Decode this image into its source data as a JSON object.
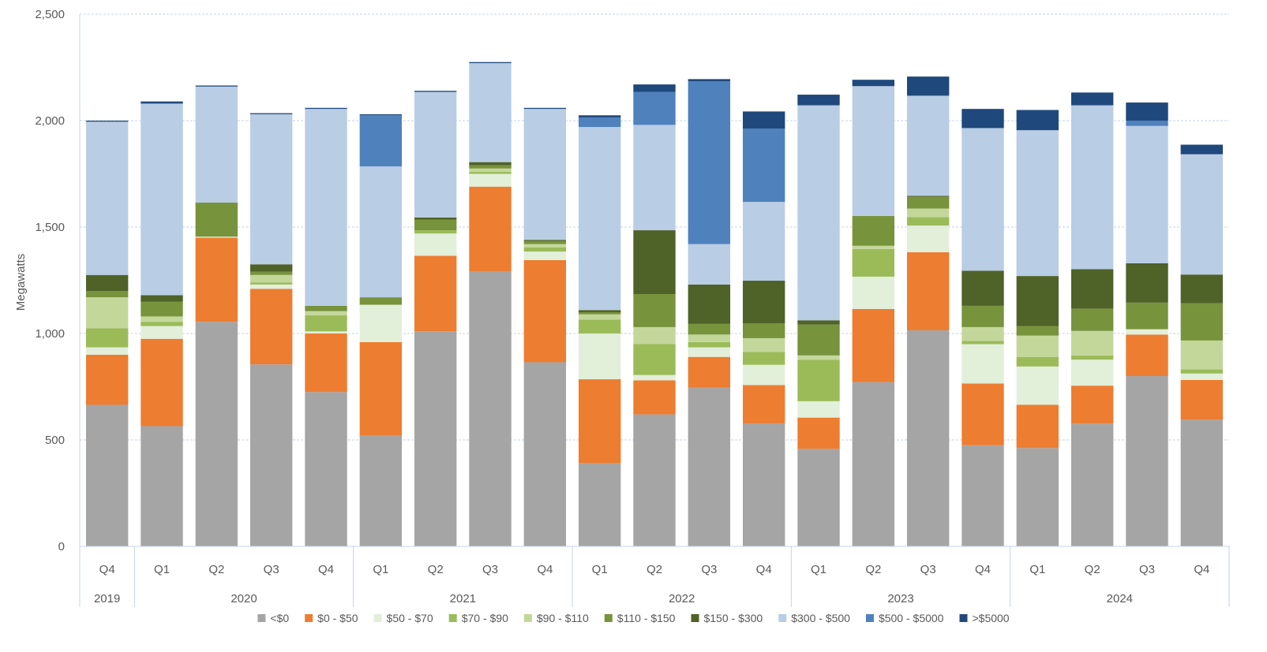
{
  "chart_data": {
    "type": "bar",
    "stacked": true,
    "title": "",
    "xlabel": "",
    "ylabel": "Megawatts",
    "ylim": [
      0,
      2500
    ],
    "yticks": [
      0,
      500,
      1000,
      1500,
      2000,
      2500
    ],
    "ytick_labels": [
      "0",
      "500",
      "1,000",
      "1,500",
      "2,000",
      "2,500"
    ],
    "grid": "horizontal-dashed",
    "legend_position": "bottom",
    "categories": [
      "Q4",
      "Q1",
      "Q2",
      "Q3",
      "Q4",
      "Q1",
      "Q2",
      "Q3",
      "Q4",
      "Q1",
      "Q2",
      "Q3",
      "Q4",
      "Q1",
      "Q2",
      "Q3",
      "Q4",
      "Q1",
      "Q2",
      "Q3",
      "Q4"
    ],
    "year_groups": [
      {
        "label": "2019",
        "count": 1
      },
      {
        "label": "2020",
        "count": 4
      },
      {
        "label": "2021",
        "count": 4
      },
      {
        "label": "2022",
        "count": 4
      },
      {
        "label": "2023",
        "count": 4
      },
      {
        "label": "2024",
        "count": 4
      }
    ],
    "series": [
      {
        "name": "<$0",
        "color": "#a5a5a5",
        "values": [
          665,
          565,
          1055,
          855,
          725,
          520,
          1010,
          1290,
          865,
          390,
          620,
          745,
          578,
          458,
          772,
          1015,
          475,
          462,
          577,
          800,
          595
        ]
      },
      {
        "name": "$0 - $50",
        "color": "#ed7d31",
        "values": [
          235,
          410,
          395,
          355,
          275,
          440,
          355,
          400,
          480,
          395,
          160,
          145,
          180,
          147,
          343,
          367,
          290,
          203,
          178,
          195,
          187
        ]
      },
      {
        "name": "$50 - $70",
        "color": "#e2efd9",
        "values": [
          35,
          60,
          5,
          20,
          10,
          175,
          105,
          60,
          40,
          215,
          25,
          45,
          95,
          77,
          152,
          125,
          185,
          180,
          122,
          25,
          30
        ]
      },
      {
        "name": "$70 - $90",
        "color": "#9bbb59",
        "values": [
          90,
          20,
          0,
          10,
          75,
          0,
          15,
          10,
          20,
          65,
          145,
          25,
          60,
          195,
          130,
          40,
          15,
          45,
          20,
          0,
          20
        ]
      },
      {
        "name": "$90 - $110",
        "color": "#c4d79b",
        "values": [
          145,
          25,
          0,
          35,
          20,
          0,
          0,
          15,
          15,
          25,
          80,
          35,
          65,
          20,
          15,
          40,
          65,
          100,
          115,
          0,
          135
        ]
      },
      {
        "name": "$110 - $150",
        "color": "#77933c",
        "values": [
          30,
          70,
          160,
          15,
          25,
          35,
          50,
          15,
          15,
          10,
          155,
          50,
          70,
          145,
          140,
          55,
          100,
          45,
          105,
          125,
          175
        ]
      },
      {
        "name": "$150 - $300",
        "color": "#4f6228",
        "values": [
          75,
          30,
          0,
          35,
          0,
          0,
          10,
          15,
          5,
          10,
          300,
          185,
          200,
          20,
          0,
          5,
          165,
          235,
          185,
          185,
          135
        ]
      },
      {
        "name": "$300 - $500",
        "color": "#b9cde5",
        "values": [
          720,
          900,
          545,
          705,
          925,
          615,
          590,
          465,
          615,
          860,
          495,
          190,
          370,
          1010,
          610,
          470,
          670,
          685,
          770,
          645,
          565
        ]
      },
      {
        "name": "$500 - $5000",
        "color": "#4f81bd",
        "values": [
          0,
          0,
          0,
          0,
          0,
          240,
          0,
          0,
          0,
          45,
          155,
          765,
          345,
          0,
          0,
          0,
          0,
          0,
          0,
          25,
          0
        ]
      },
      {
        "name": ">$5000",
        "color": "#1f497d",
        "values": [
          5,
          10,
          5,
          5,
          5,
          5,
          5,
          5,
          5,
          10,
          35,
          10,
          80,
          50,
          30,
          90,
          90,
          95,
          60,
          85,
          45
        ]
      }
    ]
  }
}
